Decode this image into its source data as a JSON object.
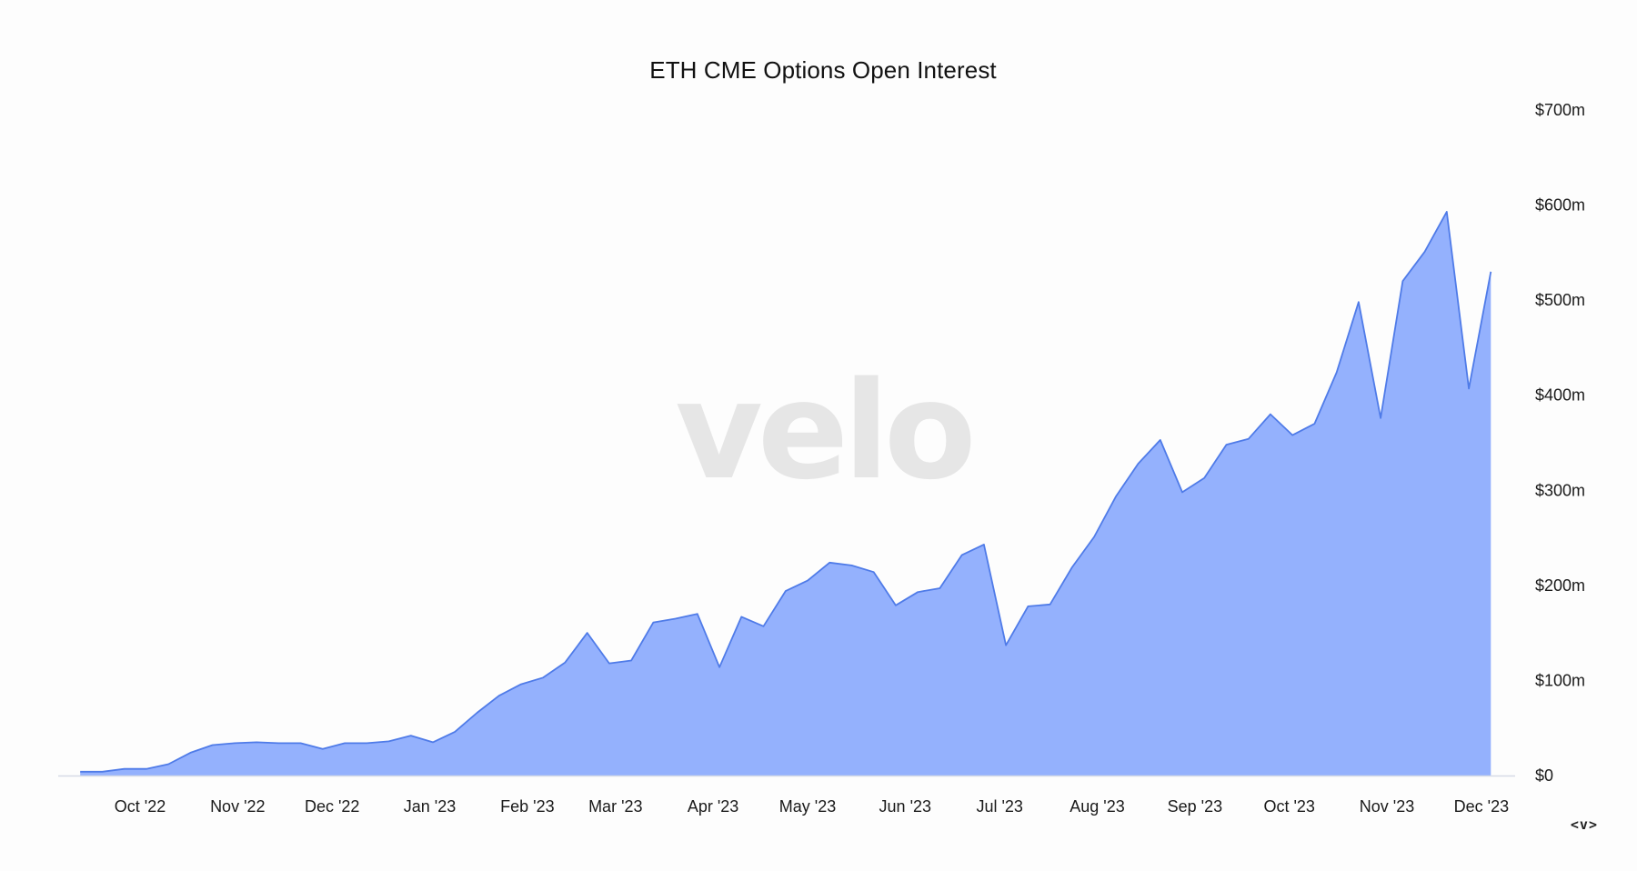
{
  "chart_data": {
    "type": "area",
    "title": "ETH CME Options Open Interest",
    "xlabel": "",
    "ylabel": "",
    "watermark": "velo",
    "y_axis": {
      "position": "right",
      "ylim": [
        0,
        700
      ],
      "ticks": [
        0,
        100,
        200,
        300,
        400,
        500,
        600,
        700
      ],
      "tick_labels": [
        "$0",
        "$100m",
        "$200m",
        "$300m",
        "$400m",
        "$500m",
        "$600m",
        "$700m"
      ]
    },
    "x_axis": {
      "xlim": [
        "2022-09-05",
        "2023-12-12"
      ],
      "ticks": [
        {
          "date": "2022-10-01",
          "label": "Oct '22"
        },
        {
          "date": "2022-11-01",
          "label": "Nov '22"
        },
        {
          "date": "2022-12-01",
          "label": "Dec '22"
        },
        {
          "date": "2023-01-01",
          "label": "Jan '23"
        },
        {
          "date": "2023-02-01",
          "label": "Feb '23"
        },
        {
          "date": "2023-03-01",
          "label": "Mar '23"
        },
        {
          "date": "2023-04-01",
          "label": "Apr '23"
        },
        {
          "date": "2023-05-01",
          "label": "May '23"
        },
        {
          "date": "2023-06-01",
          "label": "Jun '23"
        },
        {
          "date": "2023-07-01",
          "label": "Jul '23"
        },
        {
          "date": "2023-08-01",
          "label": "Aug '23"
        },
        {
          "date": "2023-09-01",
          "label": "Sep '23"
        },
        {
          "date": "2023-10-01",
          "label": "Oct '23"
        },
        {
          "date": "2023-11-01",
          "label": "Nov '23"
        },
        {
          "date": "2023-12-01",
          "label": "Dec '23"
        }
      ]
    },
    "grid": false,
    "legend": "none",
    "fill_color": "#94b1fd",
    "line_color": "#4f7be8",
    "axis_color": "#d6dbe6",
    "series": [
      {
        "x": [
          "2022-09-12",
          "2022-09-19",
          "2022-09-26",
          "2022-10-03",
          "2022-10-10",
          "2022-10-17",
          "2022-10-24",
          "2022-10-31",
          "2022-11-07",
          "2022-11-14",
          "2022-11-21",
          "2022-11-28",
          "2022-12-05",
          "2022-12-12",
          "2022-12-19",
          "2022-12-26",
          "2023-01-02",
          "2023-01-09",
          "2023-01-16",
          "2023-01-23",
          "2023-01-30",
          "2023-02-06",
          "2023-02-13",
          "2023-02-20",
          "2023-02-27",
          "2023-03-06",
          "2023-03-13",
          "2023-03-20",
          "2023-03-27",
          "2023-04-03",
          "2023-04-10",
          "2023-04-17",
          "2023-04-24",
          "2023-05-01",
          "2023-05-08",
          "2023-05-15",
          "2023-05-22",
          "2023-05-29",
          "2023-06-05",
          "2023-06-12",
          "2023-06-19",
          "2023-06-26",
          "2023-07-03",
          "2023-07-10",
          "2023-07-17",
          "2023-07-24",
          "2023-07-31",
          "2023-08-07",
          "2023-08-14",
          "2023-08-21",
          "2023-08-28",
          "2023-09-04",
          "2023-09-11",
          "2023-09-18",
          "2023-09-25",
          "2023-10-02",
          "2023-10-09",
          "2023-10-16",
          "2023-10-23",
          "2023-10-30",
          "2023-11-06",
          "2023-11-13",
          "2023-11-20",
          "2023-11-27",
          "2023-12-04"
        ],
        "values": [
          4,
          4,
          7,
          7,
          12,
          24,
          32,
          34,
          35,
          34,
          34,
          28,
          34,
          34,
          36,
          42,
          35,
          46,
          66,
          84,
          96,
          103,
          119,
          150,
          118,
          121,
          161,
          165,
          170,
          114,
          167,
          157,
          194,
          205,
          224,
          221,
          214,
          179,
          193,
          197,
          232,
          243,
          137,
          178,
          180,
          219,
          251,
          294,
          328,
          353,
          298,
          313,
          348,
          354,
          380,
          358,
          370,
          424,
          498,
          376,
          520,
          551,
          593,
          407,
          530
        ]
      }
    ]
  },
  "controls": {
    "nav_label": "<v>"
  }
}
